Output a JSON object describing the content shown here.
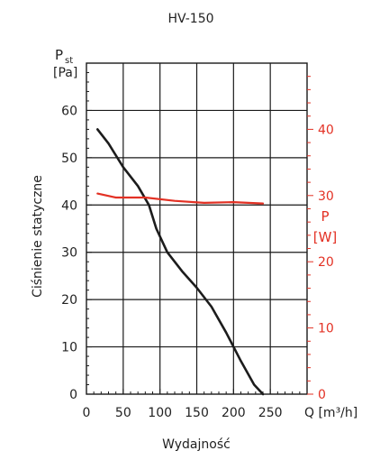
{
  "chart_data": {
    "type": "line",
    "title": "HV-150",
    "xlabel": "Wydajność",
    "x_unit_label": "Q [m³/h]",
    "ylabel_left": "Ciśnienie statyczne",
    "y_left_symbol": "P",
    "y_left_symbol_sub": "st",
    "y_left_unit": "[Pa]",
    "y_right_symbol": "P",
    "y_right_unit": "[W]",
    "xlim": [
      0,
      300
    ],
    "x_ticks": [
      "0",
      "50",
      "100",
      "150",
      "200",
      "250"
    ],
    "ylim_left": [
      0,
      70
    ],
    "y_left_ticks": [
      "0",
      "10",
      "20",
      "30",
      "40",
      "50",
      "60"
    ],
    "ylim_right": [
      0,
      50
    ],
    "y_right_ticks": [
      "0",
      "10",
      "20",
      "30",
      "40"
    ],
    "grid": true,
    "colors": {
      "pressure": "#1c1c1c",
      "power": "#e33124"
    },
    "series": [
      {
        "axis": "left",
        "points": [
          [
            15,
            56
          ],
          [
            30,
            53
          ],
          [
            50,
            48
          ],
          [
            70,
            44
          ],
          [
            85,
            40
          ],
          [
            95,
            35
          ],
          [
            110,
            30
          ],
          [
            130,
            26
          ],
          [
            150,
            22.5
          ],
          [
            170,
            18.5
          ],
          [
            190,
            13
          ],
          [
            210,
            7
          ],
          [
            228,
            2
          ],
          [
            240,
            0
          ]
        ]
      },
      {
        "axis": "right",
        "points": [
          [
            15,
            30.3
          ],
          [
            40,
            29.7
          ],
          [
            80,
            29.7
          ],
          [
            120,
            29.2
          ],
          [
            160,
            28.9
          ],
          [
            200,
            29
          ],
          [
            240,
            28.8
          ]
        ]
      }
    ]
  }
}
